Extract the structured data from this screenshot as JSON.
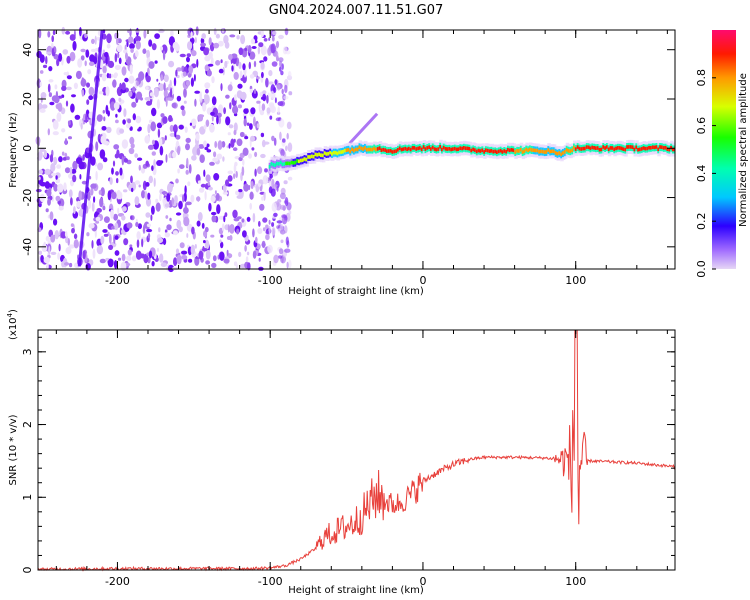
{
  "title": "GN04.2024.007.11.51.G07",
  "chart_data": [
    {
      "type": "heatmap",
      "name": "spectrogram",
      "xlabel": "Height of straight line (km)",
      "ylabel": "Frequency (Hz)",
      "xlim": [
        -252,
        165
      ],
      "ylim": [
        -49,
        48
      ],
      "xticks": [
        -200,
        -100,
        0,
        100
      ],
      "yticks": [
        -40,
        -20,
        0,
        20,
        40
      ],
      "colorbar": {
        "label": "Normalized spectral amplitude",
        "range": [
          0,
          1
        ],
        "ticks": [
          0.0,
          0.2,
          0.4,
          0.6,
          0.8
        ]
      },
      "signal_track": [
        {
          "x": -100,
          "y": -7,
          "amp": 0.45
        },
        {
          "x": -90,
          "y": -6,
          "amp": 0.55
        },
        {
          "x": -80,
          "y": -5,
          "amp": 0.7
        },
        {
          "x": -70,
          "y": -3,
          "amp": 0.7
        },
        {
          "x": -60,
          "y": -2,
          "amp": 0.75
        },
        {
          "x": -50,
          "y": -1,
          "amp": 0.8
        },
        {
          "x": -40,
          "y": 0,
          "amp": 0.85
        },
        {
          "x": -30,
          "y": 0,
          "amp": 0.9
        },
        {
          "x": -20,
          "y": -1,
          "amp": 0.9
        },
        {
          "x": -10,
          "y": 0,
          "amp": 0.95
        },
        {
          "x": 0,
          "y": 0,
          "amp": 0.95
        },
        {
          "x": 20,
          "y": 0,
          "amp": 0.9
        },
        {
          "x": 40,
          "y": -1,
          "amp": 0.9
        },
        {
          "x": 60,
          "y": -1,
          "amp": 0.9
        },
        {
          "x": 80,
          "y": -1,
          "amp": 0.85
        },
        {
          "x": 90,
          "y": -2,
          "amp": 0.85
        },
        {
          "x": 100,
          "y": 0,
          "amp": 0.9
        },
        {
          "x": 120,
          "y": 0,
          "amp": 0.9
        },
        {
          "x": 140,
          "y": 0,
          "amp": 0.95
        },
        {
          "x": 165,
          "y": 0,
          "amp": 0.95
        }
      ],
      "noise_region_x": [
        -252,
        -92
      ],
      "weak_streak": {
        "x": [
          -225,
          -210
        ],
        "y": [
          -48,
          48
        ]
      },
      "spur": {
        "x": [
          -48,
          -30
        ],
        "y": [
          2,
          14
        ]
      }
    },
    {
      "type": "line",
      "name": "snr",
      "xlabel": "Height of straight line (km)",
      "ylabel": "SNR (10 * v/v)",
      "y_multiplier": "(x10",
      "y_multiplier_exp": "4",
      "xlim": [
        -252,
        165
      ],
      "ylim": [
        0,
        3.3
      ],
      "xticks": [
        -200,
        -100,
        0,
        100
      ],
      "yticks": [
        0,
        1,
        2,
        3
      ],
      "color": "#e8413c",
      "series": [
        {
          "x": [
            -252,
            -200,
            -150,
            -110,
            -100,
            -90,
            -80,
            -70,
            -65,
            -60,
            -55,
            -50,
            -45,
            -40,
            -35,
            -30,
            -25,
            -20,
            -15,
            -10,
            -5,
            0,
            10,
            20,
            30,
            40,
            60,
            80,
            85,
            90,
            95,
            100,
            105,
            110,
            120,
            140,
            165
          ],
          "values": [
            0.01,
            0.02,
            0.02,
            0.02,
            0.03,
            0.06,
            0.15,
            0.3,
            0.45,
            0.5,
            0.55,
            0.6,
            0.65,
            0.75,
            0.9,
            1.05,
            0.95,
            0.9,
            0.92,
            1.0,
            1.1,
            1.22,
            1.35,
            1.45,
            1.52,
            1.55,
            1.55,
            1.54,
            1.53,
            1.52,
            1.5,
            1.5,
            1.5,
            1.5,
            1.49,
            1.47,
            1.42
          ]
        }
      ]
    }
  ]
}
